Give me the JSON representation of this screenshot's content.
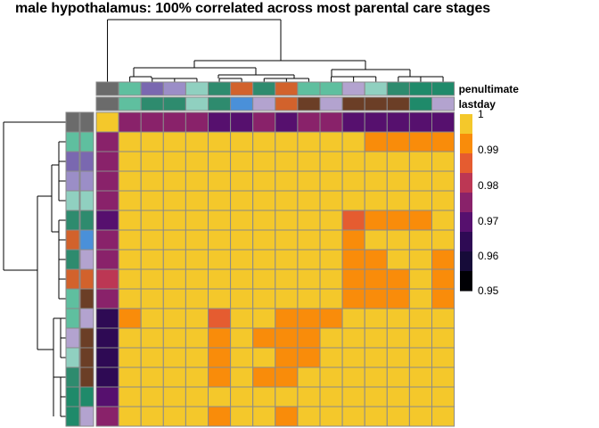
{
  "title": "male hypothalamus: 100% correlated across most parental care stages",
  "palette": {
    "5": "#f4c82b",
    "4": "#f98c0a",
    "3": "#e55c30",
    "2": "#bc3754",
    "1": "#89226a",
    "0": "#56106e",
    "m": "#2e0a54",
    "n": "#160b39",
    "b": "#000004",
    "cell_border": "#8a8a8a"
  },
  "chart_data": {
    "type": "heatmap",
    "title": "male hypothalamus: 100% correlated across most parental care stages",
    "value_range": [
      0.95,
      1
    ],
    "matrix": [
      "5111100101100000",
      "1555555555554444",
      "1555555555555555",
      "1555555555555555",
      "1555555555555555",
      "0555555555534445",
      "1555555555545555",
      "1555555555544554",
      "2555555555544454",
      "1555555555544454",
      "m455535544455555",
      "m555545444555555",
      "m555545544555555",
      "m555545445555555",
      "0555555555555555",
      "1555545545555555"
    ],
    "col_annotations": {
      "penultimate": [
        "#6b6b6b",
        "#5fbf9f",
        "#7a68b0",
        "#9b8ec7",
        "#90d0c0",
        "#2e8b6e",
        "#d2622c",
        "#2e8b6e",
        "#d2622c",
        "#5fbf9f",
        "#5fbf9f",
        "#b3a3cf",
        "#90d0c0",
        "#2e8b6e",
        "#1f8a6a",
        "#1f8a6a"
      ],
      "lastday": [
        "#6b6b6b",
        "#5fbf9f",
        "#2e8b6e",
        "#2e8b6e",
        "#90d0c0",
        "#2e8b6e",
        "#4a90d9",
        "#b3a3cf",
        "#d2622c",
        "#6b3e26",
        "#b3a3cf",
        "#6b3e26",
        "#6b3e26",
        "#6b3e26",
        "#1f8a6a",
        "#b3a3cf"
      ]
    },
    "row_annotations": {
      "penultimate": [
        "#6b6b6b",
        "#5fbf9f",
        "#7a68b0",
        "#9b8ec7",
        "#90d0c0",
        "#2e8b6e",
        "#d2622c",
        "#2e8b6e",
        "#d2622c",
        "#5fbf9f",
        "#5fbf9f",
        "#b3a3cf",
        "#90d0c0",
        "#2e8b6e",
        "#1f8a6a",
        "#1f8a6a"
      ],
      "lastday": [
        "#6b6b6b",
        "#5fbf9f",
        "#7a68b0",
        "#9b8ec7",
        "#90d0c0",
        "#2e8b6e",
        "#4a90d9",
        "#b3a3cf",
        "#d2622c",
        "#6b3e26",
        "#b3a3cf",
        "#6b3e26",
        "#6b3e26",
        "#6b3e26",
        "#1f8a6a",
        "#b3a3cf"
      ]
    },
    "annotation_labels": [
      "penultimate",
      "lastday"
    ],
    "legend": {
      "ticks": [
        "1",
        "0.99",
        "0.98",
        "0.97",
        "0.96",
        "0.95"
      ],
      "colors": [
        "#f4c82b",
        "#f98c0a",
        "#e55c30",
        "#bc3754",
        "#89226a",
        "#56106e",
        "#2e0a54",
        "#160b39",
        "#000004"
      ]
    },
    "dendrogram_merge_heights_top": "hierarchical clustering of 16 columns",
    "dendrogram_merge_heights_left": "hierarchical clustering of 16 rows"
  }
}
